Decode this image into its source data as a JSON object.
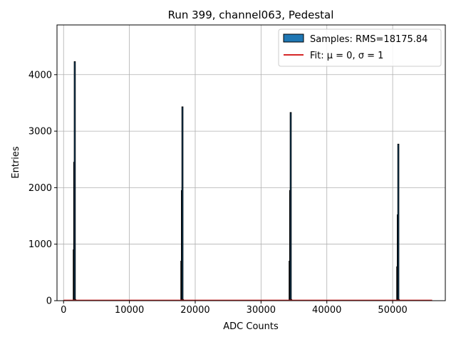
{
  "chart_data": {
    "type": "histogram",
    "title": "Run 399, channel063, Pedestal",
    "xlabel": "ADC Counts",
    "ylabel": "Entries",
    "xlim": [
      -1000,
      58000
    ],
    "ylim": [
      0,
      4880
    ],
    "xticks": [
      0,
      10000,
      20000,
      30000,
      40000,
      50000
    ],
    "xtick_labels": [
      "0",
      "10000",
      "20000",
      "30000",
      "40000",
      "50000"
    ],
    "yticks": [
      0,
      1000,
      2000,
      3000,
      4000
    ],
    "ytick_labels": [
      "0",
      "1000",
      "2000",
      "3000",
      "4000"
    ],
    "grid": true,
    "legend_position": "top-right",
    "series": [
      {
        "name": "Samples: RMS=18175.84",
        "kind": "histogram",
        "color": "#1f77b4",
        "edge_color": "#000000",
        "peaks": [
          {
            "bins": [
              {
                "x": 1550,
                "y": 900
              },
              {
                "x": 1620,
                "y": 2450
              },
              {
                "x": 1700,
                "y": 4230
              },
              {
                "x": 1780,
                "y": 20
              }
            ]
          },
          {
            "bins": [
              {
                "x": 17900,
                "y": 700
              },
              {
                "x": 17980,
                "y": 1950
              },
              {
                "x": 18060,
                "y": 3430
              },
              {
                "x": 18140,
                "y": 20
              }
            ]
          },
          {
            "bins": [
              {
                "x": 34350,
                "y": 700
              },
              {
                "x": 34430,
                "y": 1950
              },
              {
                "x": 34510,
                "y": 3330
              },
              {
                "x": 34590,
                "y": 20
              }
            ]
          },
          {
            "bins": [
              {
                "x": 50700,
                "y": 600
              },
              {
                "x": 50780,
                "y": 1520
              },
              {
                "x": 50860,
                "y": 2770
              },
              {
                "x": 50940,
                "y": 20
              }
            ]
          }
        ]
      },
      {
        "name": "Fit: μ = 0, σ = 1",
        "kind": "line",
        "color": "#d62728",
        "points": [
          {
            "x": 0,
            "y": 0
          },
          {
            "x": 56000,
            "y": 0
          }
        ]
      }
    ]
  },
  "legend": {
    "items": [
      {
        "label": "Samples: RMS=18175.84",
        "symbol": "patch",
        "color": "#1f77b4"
      },
      {
        "label": "Fit: μ = 0, σ = 1",
        "symbol": "line",
        "color": "#d62728"
      }
    ]
  }
}
